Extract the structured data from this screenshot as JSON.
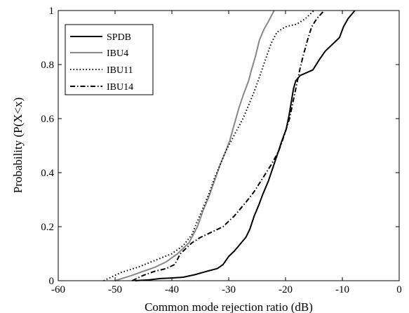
{
  "chart_data": {
    "type": "line",
    "xlabel": "Common mode rejection ratio (dB)",
    "ylabel": "Probability (P(X<x)",
    "xlim": [
      -60,
      0
    ],
    "ylim": [
      0,
      1
    ],
    "x_ticks": [
      -60,
      -50,
      -40,
      -30,
      -20,
      -10,
      0
    ],
    "y_ticks": [
      0,
      0.2,
      0.4,
      0.6,
      0.8,
      1
    ],
    "x_tick_labels": [
      "-60",
      "-50",
      "-40",
      "-30",
      "-20",
      "-10",
      "0"
    ],
    "y_tick_labels": [
      "0",
      "0.2",
      "0.4",
      "0.6",
      "0.8",
      "1"
    ],
    "grid": false,
    "legend_position": "top-left",
    "series": [
      {
        "name": "SPDB",
        "color": "#000000",
        "style": "solid",
        "points": [
          [
            -46.5,
            0
          ],
          [
            -44,
            0.003
          ],
          [
            -42,
            0.008
          ],
          [
            -40,
            0.01
          ],
          [
            -38,
            0.013
          ],
          [
            -36,
            0.022
          ],
          [
            -34,
            0.034
          ],
          [
            -32,
            0.045
          ],
          [
            -31,
            0.06
          ],
          [
            -30,
            0.09
          ],
          [
            -29,
            0.11
          ],
          [
            -28,
            0.135
          ],
          [
            -27,
            0.16
          ],
          [
            -26.3,
            0.19
          ],
          [
            -25.5,
            0.24
          ],
          [
            -24.7,
            0.28
          ],
          [
            -24,
            0.32
          ],
          [
            -23,
            0.37
          ],
          [
            -22.2,
            0.42
          ],
          [
            -21.4,
            0.47
          ],
          [
            -20.6,
            0.52
          ],
          [
            -19.9,
            0.56
          ],
          [
            -19.4,
            0.61
          ],
          [
            -19,
            0.66
          ],
          [
            -18.6,
            0.71
          ],
          [
            -18.2,
            0.74
          ],
          [
            -17.4,
            0.76
          ],
          [
            -16.3,
            0.77
          ],
          [
            -15.2,
            0.78
          ],
          [
            -14,
            0.82
          ],
          [
            -13,
            0.85
          ],
          [
            -11.5,
            0.88
          ],
          [
            -10.5,
            0.9
          ],
          [
            -9.8,
            0.94
          ],
          [
            -9,
            0.97
          ],
          [
            -7.8,
            1.0
          ]
        ]
      },
      {
        "name": "IBU4",
        "color": "#888888",
        "style": "solid",
        "points": [
          [
            -50,
            0
          ],
          [
            -47,
            0.02
          ],
          [
            -45,
            0.035
          ],
          [
            -43,
            0.05
          ],
          [
            -41,
            0.07
          ],
          [
            -39,
            0.1
          ],
          [
            -37,
            0.14
          ],
          [
            -35.5,
            0.2
          ],
          [
            -34.5,
            0.26
          ],
          [
            -33.5,
            0.31
          ],
          [
            -32.5,
            0.37
          ],
          [
            -31.5,
            0.43
          ],
          [
            -30.5,
            0.48
          ],
          [
            -29.8,
            0.52
          ],
          [
            -29,
            0.58
          ],
          [
            -28.2,
            0.64
          ],
          [
            -27.4,
            0.69
          ],
          [
            -26.5,
            0.74
          ],
          [
            -26,
            0.78
          ],
          [
            -25.3,
            0.83
          ],
          [
            -24.6,
            0.89
          ],
          [
            -23.8,
            0.93
          ],
          [
            -23,
            0.96
          ],
          [
            -22,
            1.0
          ]
        ]
      },
      {
        "name": "IBU11",
        "color": "#000000",
        "style": "dotted",
        "points": [
          [
            -52,
            0
          ],
          [
            -49,
            0.03
          ],
          [
            -46,
            0.05
          ],
          [
            -43,
            0.075
          ],
          [
            -40,
            0.1
          ],
          [
            -38,
            0.13
          ],
          [
            -36.5,
            0.17
          ],
          [
            -35.5,
            0.22
          ],
          [
            -34.5,
            0.27
          ],
          [
            -33.5,
            0.32
          ],
          [
            -32.5,
            0.38
          ],
          [
            -31.5,
            0.43
          ],
          [
            -30.5,
            0.48
          ],
          [
            -29.5,
            0.52
          ],
          [
            -28.5,
            0.56
          ],
          [
            -27.5,
            0.6
          ],
          [
            -26.5,
            0.65
          ],
          [
            -25.5,
            0.7
          ],
          [
            -24.5,
            0.76
          ],
          [
            -23.5,
            0.82
          ],
          [
            -22.5,
            0.88
          ],
          [
            -21.5,
            0.92
          ],
          [
            -20,
            0.94
          ],
          [
            -18,
            0.95
          ],
          [
            -16.5,
            0.97
          ],
          [
            -15,
            1.0
          ]
        ]
      },
      {
        "name": "IBU14",
        "color": "#000000",
        "style": "dashdot",
        "points": [
          [
            -47,
            0
          ],
          [
            -45,
            0.02
          ],
          [
            -43,
            0.035
          ],
          [
            -41,
            0.045
          ],
          [
            -39.5,
            0.06
          ],
          [
            -38.5,
            0.1
          ],
          [
            -37.5,
            0.12
          ],
          [
            -36.5,
            0.14
          ],
          [
            -35,
            0.16
          ],
          [
            -33,
            0.18
          ],
          [
            -31,
            0.2
          ],
          [
            -29,
            0.24
          ],
          [
            -27,
            0.29
          ],
          [
            -25.5,
            0.33
          ],
          [
            -24,
            0.38
          ],
          [
            -22.5,
            0.43
          ],
          [
            -21.2,
            0.48
          ],
          [
            -20.2,
            0.54
          ],
          [
            -19.3,
            0.6
          ],
          [
            -18.6,
            0.67
          ],
          [
            -18,
            0.73
          ],
          [
            -17.4,
            0.79
          ],
          [
            -16.8,
            0.84
          ],
          [
            -16,
            0.9
          ],
          [
            -15.4,
            0.94
          ],
          [
            -14.5,
            0.97
          ],
          [
            -13.2,
            1.0
          ]
        ]
      }
    ]
  }
}
